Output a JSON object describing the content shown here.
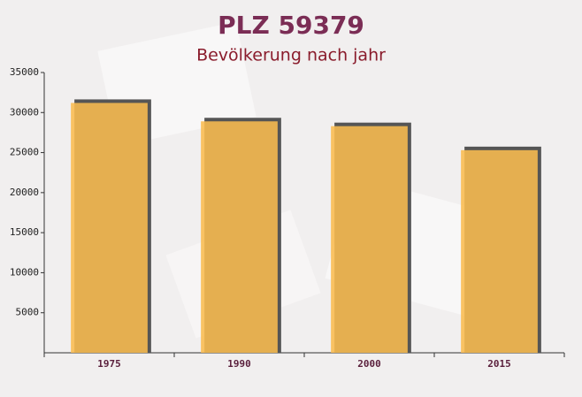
{
  "chart_data": {
    "type": "bar",
    "title": "PLZ 59379",
    "subtitle": "Bevölkerung nach jahr",
    "categories": [
      "1975",
      "1990",
      "2000",
      "2015"
    ],
    "values": [
      31200,
      28900,
      28300,
      25300
    ],
    "color": "#f9bc50",
    "ylim": [
      0,
      35000
    ],
    "yticks": [
      5000,
      10000,
      15000,
      20000,
      25000,
      30000,
      35000
    ],
    "grid": false
  }
}
